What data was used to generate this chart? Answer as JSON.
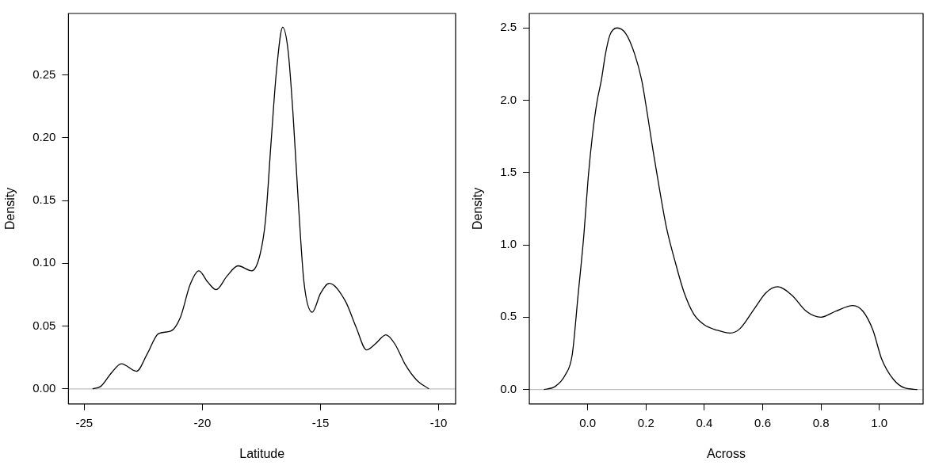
{
  "chart_data": [
    {
      "type": "line",
      "xlabel": "Latitude",
      "ylabel": "Density",
      "marker": "none",
      "legend": false,
      "grid": false,
      "x": [
        -24.65,
        -24.3,
        -23.84,
        -23.43,
        -22.79,
        -22.33,
        -21.86,
        -21.34,
        -20.93,
        -20.52,
        -20.15,
        -19.77,
        -19.42,
        -18.95,
        -18.49,
        -17.91,
        -17.56,
        -17.33,
        -17.09,
        -16.86,
        -16.6,
        -16.37,
        -16.16,
        -15.93,
        -15.7,
        -15.35,
        -15.0,
        -14.63,
        -13.95,
        -13.49,
        -13.05,
        -12.67,
        -12.23,
        -11.86,
        -11.4,
        -10.93,
        -10.41
      ],
      "series": [
        {
          "color": "#000000",
          "values": [
            0.0,
            0.002,
            0.013,
            0.02,
            0.014,
            0.028,
            0.044,
            0.046,
            0.057,
            0.083,
            0.094,
            0.085,
            0.079,
            0.09,
            0.098,
            0.094,
            0.107,
            0.134,
            0.197,
            0.254,
            0.288,
            0.269,
            0.218,
            0.146,
            0.085,
            0.061,
            0.076,
            0.084,
            0.07,
            0.049,
            0.031,
            0.036,
            0.043,
            0.036,
            0.019,
            0.007,
            0.0
          ]
        }
      ],
      "xlim": [
        -25.67,
        -9.28
      ],
      "ylim": [
        -0.012,
        0.299
      ],
      "xticks": [
        -25,
        -20,
        -15,
        -10
      ],
      "yticks": [
        {
          "value": 0,
          "label": "0.00"
        },
        {
          "value": 0.05,
          "label": "0.05"
        },
        {
          "value": 0.1,
          "label": "0.10"
        },
        {
          "value": 0.15,
          "label": "0.15"
        },
        {
          "value": 0.2,
          "label": "0.20"
        },
        {
          "value": 0.25,
          "label": "0.25"
        }
      ],
      "ref_lines": [
        {
          "axis": "y",
          "value": 0,
          "color": "#bebebe"
        }
      ]
    },
    {
      "type": "line",
      "xlabel": "Across",
      "ylabel": "Density",
      "marker": "none",
      "legend": false,
      "grid": false,
      "x": [
        -0.15,
        -0.112,
        -0.077,
        -0.053,
        -0.033,
        -0.013,
        0.002,
        0.017,
        0.032,
        0.047,
        0.061,
        0.076,
        0.101,
        0.131,
        0.161,
        0.185,
        0.205,
        0.225,
        0.245,
        0.27,
        0.299,
        0.329,
        0.364,
        0.398,
        0.443,
        0.488,
        0.522,
        0.572,
        0.612,
        0.651,
        0.701,
        0.75,
        0.8,
        0.849,
        0.909,
        0.944,
        0.978,
        1.008,
        1.048,
        1.087,
        1.13
      ],
      "series": [
        {
          "color": "#000000",
          "values": [
            0.0,
            0.02,
            0.1,
            0.24,
            0.65,
            1.07,
            1.47,
            1.77,
            1.99,
            2.14,
            2.32,
            2.45,
            2.5,
            2.46,
            2.32,
            2.14,
            1.9,
            1.64,
            1.4,
            1.12,
            0.89,
            0.68,
            0.52,
            0.45,
            0.41,
            0.39,
            0.42,
            0.56,
            0.67,
            0.71,
            0.65,
            0.54,
            0.5,
            0.54,
            0.58,
            0.54,
            0.41,
            0.21,
            0.07,
            0.01,
            0.0
          ]
        }
      ],
      "xlim": [
        -0.2,
        1.15
      ],
      "ylim": [
        -0.1,
        2.6
      ],
      "xticks": [
        {
          "value": 0,
          "label": "0.0"
        },
        {
          "value": 0.2,
          "label": "0.2"
        },
        {
          "value": 0.4,
          "label": "0.4"
        },
        {
          "value": 0.6,
          "label": "0.6"
        },
        {
          "value": 0.8,
          "label": "0.8"
        },
        {
          "value": 1,
          "label": "1.0"
        }
      ],
      "yticks": [
        {
          "value": 0,
          "label": "0.0"
        },
        {
          "value": 0.5,
          "label": "0.5"
        },
        {
          "value": 1,
          "label": "1.0"
        },
        {
          "value": 1.5,
          "label": "1.5"
        },
        {
          "value": 2,
          "label": "2.0"
        },
        {
          "value": 2.5,
          "label": "2.5"
        }
      ],
      "ref_lines": [
        {
          "axis": "y",
          "value": 0,
          "color": "#bebebe"
        }
      ]
    }
  ]
}
